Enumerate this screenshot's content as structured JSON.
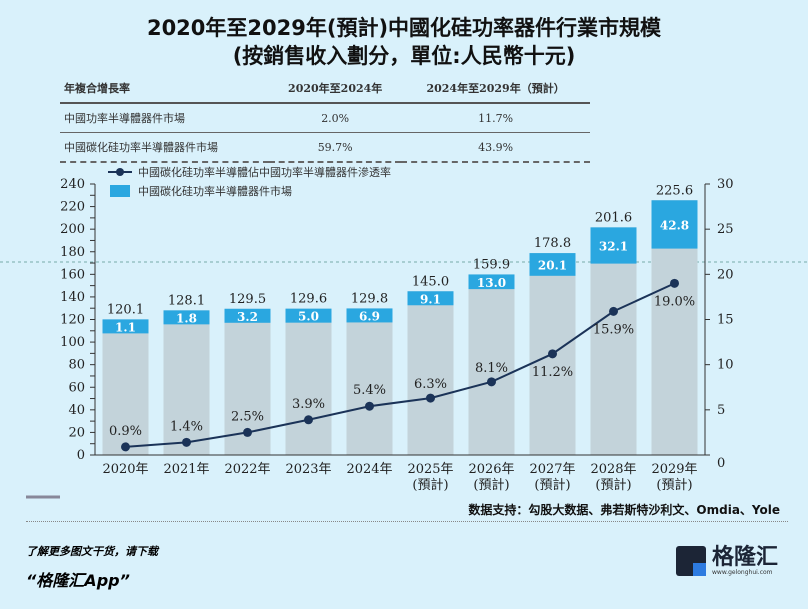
{
  "title_line1": "2020年至2029年(預計)中國化硅功率器件行業市規模",
  "title_line2": "(按銷售收入劃分，單位:人民幣十元)",
  "cagr_table": {
    "headers": [
      "年複合增長率",
      "2020年至2024年",
      "2024年至2029年（預計）"
    ],
    "rows": [
      [
        "中國功率半導體器件市場",
        "2.0%",
        "11.7%"
      ],
      [
        "中國碳化硅功率半導體器件市場",
        "59.7%",
        "43.9%"
      ]
    ]
  },
  "chart_data": {
    "type": "bar+line",
    "categories": [
      "2020年",
      "2021年",
      "2022年",
      "2023年",
      "2024年",
      "2025年\n(預計)",
      "2026年\n(預計)",
      "2027年\n(預計)",
      "2028年\n(預計)",
      "2029年\n(預計)"
    ],
    "totals": [
      120.1,
      128.1,
      129.5,
      129.6,
      129.8,
      145.0,
      159.9,
      178.8,
      201.6,
      225.6
    ],
    "series": [
      {
        "name": "中國碳化硅功率半導體器件市場",
        "type": "bar",
        "values": [
          1.1,
          1.8,
          3.2,
          5.0,
          6.9,
          9.1,
          13.0,
          20.1,
          32.1,
          42.8
        ],
        "color": "#2aa7e0"
      },
      {
        "name": "中國碳化硅功率半導體佔中國功率半導體器件滲透率",
        "type": "line",
        "axis": "right",
        "values": [
          0.9,
          1.4,
          2.5,
          3.9,
          5.4,
          6.3,
          8.1,
          11.2,
          15.9,
          19.0
        ],
        "color": "#1b3358"
      }
    ],
    "other_bar_color": "#c3d3da",
    "ylim_left": [
      0,
      240
    ],
    "yticks_left": [
      0,
      10,
      20,
      30,
      40,
      50,
      60,
      70,
      80,
      90,
      100,
      110,
      120,
      130,
      140,
      150,
      160,
      170,
      180,
      190,
      200,
      210,
      220,
      230,
      240
    ],
    "ylim_right": [
      0,
      30
    ],
    "yticks_right": [
      0,
      5,
      10,
      15,
      20,
      25,
      30
    ],
    "legend_placement": "top-left"
  },
  "source": "数据支持：勾股大数据、弗若斯特沙利文、Omdia、Yole",
  "footer": {
    "line1": "了解更多图文干货，请下载",
    "line2": "“格隆汇App”",
    "logo_text": "格隆汇",
    "logo_url": "www.gelonghui.com"
  }
}
